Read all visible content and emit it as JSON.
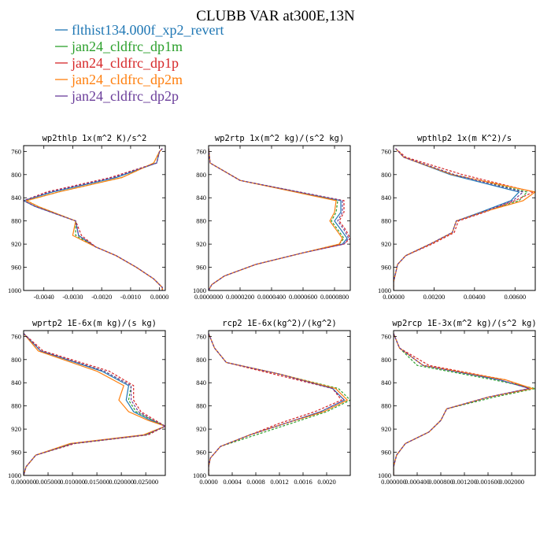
{
  "title": "CLUBB VAR at300E,13N",
  "legend": [
    {
      "label": "flthist134.000f_xp2_revert",
      "color": "#1f77b4",
      "dash": "solid"
    },
    {
      "label": "jan24_cldfrc_dp1m",
      "color": "#2ca02c",
      "dash": "dashed"
    },
    {
      "label": "jan24_cldfrc_dp1p",
      "color": "#d62728",
      "dash": "dashed"
    },
    {
      "label": "jan24_cldfrc_dp2m",
      "color": "#ff7f0e",
      "dash": "solid"
    },
    {
      "label": "jan24_cldfrc_dp2p",
      "color": "#6a3d9a",
      "dash": "dashed"
    }
  ],
  "chart_data": [
    {
      "type": "line",
      "title": "wp2thlp  1x(m^2 K)/s^2",
      "xlim": [
        -0.0047,
        0.0002
      ],
      "ylim": [
        1000,
        750
      ],
      "xticks": [
        -0.004,
        -0.003,
        -0.002,
        -0.001,
        0.0
      ],
      "xtick_labels": [
        "-0.0040",
        "-0.0030",
        "-0.0020",
        "-0.0010",
        "0.0000"
      ],
      "yticks": [
        760,
        800,
        840,
        880,
        920,
        960,
        1000
      ],
      "y": [
        755,
        760,
        780,
        805,
        830,
        845,
        855,
        880,
        905,
        925,
        940,
        960,
        980,
        995,
        1000
      ],
      "series": [
        {
          "name": "flthist134.000f_xp2_revert",
          "values": [
            0.0001,
            0.0,
            -0.0001,
            -0.0015,
            -0.0037,
            -0.0047,
            -0.0043,
            -0.0029,
            -0.0028,
            -0.0022,
            -0.0015,
            -0.0008,
            -0.0002,
            0.0001,
            0.0001
          ]
        },
        {
          "name": "jan24_cldfrc_dp1m",
          "values": [
            0.0001,
            0.0,
            -0.0002,
            -0.0013,
            -0.0035,
            -0.0046,
            -0.0042,
            -0.0029,
            -0.0029,
            -0.0022,
            -0.0015,
            -0.0008,
            -0.0002,
            0.0001,
            0.0001
          ]
        },
        {
          "name": "jan24_cldfrc_dp1p",
          "values": [
            0.0001,
            0.0,
            -0.0001,
            -0.0017,
            -0.0039,
            -0.0047,
            -0.0043,
            -0.0029,
            -0.0027,
            -0.0022,
            -0.0015,
            -0.0008,
            -0.0002,
            0.0001,
            0.0001
          ]
        },
        {
          "name": "jan24_cldfrc_dp2m",
          "values": [
            0.0001,
            0.0,
            -0.0002,
            -0.0013,
            -0.0035,
            -0.0046,
            -0.0042,
            -0.0029,
            -0.003,
            -0.0022,
            -0.0015,
            -0.0008,
            -0.0002,
            0.0001,
            0.0001
          ]
        },
        {
          "name": "jan24_cldfrc_dp2p",
          "values": [
            0.0001,
            0.0,
            -0.0001,
            -0.0016,
            -0.0038,
            -0.0047,
            -0.0043,
            -0.0029,
            -0.0028,
            -0.0022,
            -0.0015,
            -0.0008,
            -0.0002,
            0.0001,
            0.0001
          ]
        }
      ]
    },
    {
      "type": "line",
      "title": "wp2rtp  1x(m^2 kg)/(s^2 kg)",
      "xlim": [
        0.0,
        9e-05
      ],
      "ylim": [
        1000,
        750
      ],
      "xticks": [
        0.0,
        2e-05,
        4e-05,
        6e-05,
        8e-05
      ],
      "xtick_labels": [
        "0.0000000",
        "0.0000200",
        "0.0000400",
        "0.0000600",
        "0.0000800"
      ],
      "yticks": [
        760,
        800,
        840,
        880,
        920,
        960,
        1000
      ],
      "y": [
        755,
        780,
        810,
        845,
        865,
        880,
        895,
        910,
        920,
        935,
        955,
        975,
        990,
        1000
      ],
      "series": [
        {
          "name": "flthist134.000f_xp2_revert",
          "values": [
            0.0,
            1e-06,
            2e-05,
            8.4e-05,
            8.4e-05,
            8e-05,
            8.4e-05,
            8.8e-05,
            8.5e-05,
            6e-05,
            3e-05,
            1e-05,
            2e-06,
            0.0
          ]
        },
        {
          "name": "jan24_cldfrc_dp1m",
          "values": [
            0.0,
            1e-06,
            2e-05,
            8.2e-05,
            8.1e-05,
            7.8e-05,
            8.2e-05,
            8.6e-05,
            8.3e-05,
            6e-05,
            3e-05,
            1e-05,
            2e-06,
            0.0
          ]
        },
        {
          "name": "jan24_cldfrc_dp1p",
          "values": [
            0.0,
            1e-06,
            2e-05,
            8.6e-05,
            8.6e-05,
            8.3e-05,
            8.7e-05,
            9e-05,
            8.6e-05,
            6e-05,
            3e-05,
            1e-05,
            2e-06,
            0.0
          ]
        },
        {
          "name": "jan24_cldfrc_dp2m",
          "values": [
            0.0,
            1e-06,
            2e-05,
            8.1e-05,
            8e-05,
            7.7e-05,
            8.1e-05,
            8.5e-05,
            8.3e-05,
            6e-05,
            3e-05,
            1e-05,
            2e-06,
            0.0
          ]
        },
        {
          "name": "jan24_cldfrc_dp2p",
          "values": [
            0.0,
            1e-06,
            2e-05,
            8.5e-05,
            8.5e-05,
            8.2e-05,
            8.6e-05,
            8.9e-05,
            8.6e-05,
            6e-05,
            3e-05,
            1e-05,
            2e-06,
            0.0
          ]
        }
      ]
    },
    {
      "type": "line",
      "title": "wpthlp2  1x(m K^2)/s",
      "xlim": [
        0.0,
        0.007
      ],
      "ylim": [
        1000,
        750
      ],
      "xticks": [
        0.0,
        0.002,
        0.004,
        0.006
      ],
      "xtick_labels": [
        "0.00000",
        "0.00200",
        "0.00400",
        "0.00600"
      ],
      "yticks": [
        760,
        800,
        840,
        880,
        920,
        960,
        1000
      ],
      "y": [
        755,
        770,
        800,
        830,
        845,
        865,
        880,
        900,
        920,
        940,
        955,
        970,
        985,
        1000
      ],
      "series": [
        {
          "name": "flthist134.000f_xp2_revert",
          "values": [
            0.0001,
            0.0005,
            0.0028,
            0.0062,
            0.0058,
            0.0043,
            0.0031,
            0.0029,
            0.0018,
            0.0006,
            0.0002,
            0.0001,
            0.0,
            0.0
          ]
        },
        {
          "name": "jan24_cldfrc_dp1m",
          "values": [
            0.0001,
            0.0005,
            0.003,
            0.0066,
            0.0062,
            0.0044,
            0.0031,
            0.0029,
            0.0018,
            0.0006,
            0.0002,
            0.0001,
            0.0,
            0.0
          ]
        },
        {
          "name": "jan24_cldfrc_dp1p",
          "values": [
            0.0001,
            0.0006,
            0.0034,
            0.0069,
            0.006,
            0.0045,
            0.0032,
            0.003,
            0.0019,
            0.0006,
            0.0002,
            0.0001,
            0.0,
            0.0
          ]
        },
        {
          "name": "jan24_cldfrc_dp2m",
          "values": [
            0.0001,
            0.0005,
            0.0029,
            0.007,
            0.0064,
            0.0044,
            0.0031,
            0.0029,
            0.0018,
            0.0006,
            0.0002,
            0.0001,
            0.0,
            0.0
          ]
        },
        {
          "name": "jan24_cldfrc_dp2p",
          "values": [
            0.0001,
            0.0005,
            0.003,
            0.0064,
            0.0059,
            0.0044,
            0.0031,
            0.0029,
            0.0018,
            0.0006,
            0.0002,
            0.0001,
            0.0,
            0.0
          ]
        }
      ]
    },
    {
      "type": "line",
      "title": "wprtp2  1E-6x(m kg)/(s kg)",
      "xlim": [
        0.0,
        0.029
      ],
      "ylim": [
        1000,
        750
      ],
      "xticks": [
        0.0,
        0.005,
        0.01,
        0.015,
        0.02,
        0.025
      ],
      "xtick_labels": [
        "0.000000",
        "0.005000",
        "0.010000",
        "0.015000",
        "0.020000",
        "0.025000"
      ],
      "yticks": [
        760,
        800,
        840,
        880,
        920,
        960,
        1000
      ],
      "y": [
        755,
        785,
        820,
        845,
        870,
        890,
        905,
        915,
        930,
        945,
        965,
        985,
        1000
      ],
      "series": [
        {
          "name": "flthist134.000f_xp2_revert",
          "values": [
            0.0,
            0.0035,
            0.016,
            0.0215,
            0.021,
            0.0225,
            0.026,
            0.029,
            0.025,
            0.01,
            0.0025,
            0.0005,
            0.0
          ]
        },
        {
          "name": "jan24_cldfrc_dp1m",
          "values": [
            0.0,
            0.0035,
            0.0165,
            0.022,
            0.0215,
            0.023,
            0.0265,
            0.029,
            0.025,
            0.01,
            0.0025,
            0.0005,
            0.0
          ]
        },
        {
          "name": "jan24_cldfrc_dp1p",
          "values": [
            0.0,
            0.004,
            0.0175,
            0.0225,
            0.0225,
            0.024,
            0.027,
            0.029,
            0.0255,
            0.0105,
            0.0025,
            0.0005,
            0.0
          ]
        },
        {
          "name": "jan24_cldfrc_dp2m",
          "values": [
            0.0,
            0.003,
            0.015,
            0.0205,
            0.0195,
            0.0215,
            0.0255,
            0.029,
            0.0245,
            0.0095,
            0.0025,
            0.0005,
            0.0
          ]
        },
        {
          "name": "jan24_cldfrc_dp2p",
          "values": [
            0.0,
            0.0035,
            0.0165,
            0.022,
            0.022,
            0.0235,
            0.0265,
            0.029,
            0.025,
            0.01,
            0.0025,
            0.0005,
            0.0
          ]
        }
      ]
    },
    {
      "type": "line",
      "title": "rcp2  1E-6x(kg^2)/(kg^2)",
      "xlim": [
        0.0,
        0.0024
      ],
      "ylim": [
        1000,
        750
      ],
      "xticks": [
        0.0,
        0.0004,
        0.0008,
        0.0012,
        0.0016,
        0.002
      ],
      "xtick_labels": [
        "0.0000",
        "0.0004",
        "0.0008",
        "0.0012",
        "0.0016",
        "0.0020"
      ],
      "yticks": [
        760,
        800,
        840,
        880,
        920,
        960,
        1000
      ],
      "y": [
        755,
        780,
        805,
        825,
        850,
        870,
        890,
        910,
        930,
        950,
        970,
        985,
        1000
      ],
      "series": [
        {
          "name": "flthist134.000f_xp2_revert",
          "values": [
            0.0,
            0.0001,
            0.0003,
            0.0012,
            0.0021,
            0.0023,
            0.0019,
            0.0013,
            0.0007,
            0.0002,
            3e-05,
            0.0,
            0.0
          ]
        },
        {
          "name": "jan24_cldfrc_dp1m",
          "values": [
            0.0,
            0.0001,
            0.0003,
            0.0012,
            0.0022,
            0.0024,
            0.002,
            0.0014,
            0.0008,
            0.0002,
            3e-05,
            0.0,
            0.0
          ]
        },
        {
          "name": "jan24_cldfrc_dp1p",
          "values": [
            0.0,
            0.0001,
            0.0003,
            0.0011,
            0.0021,
            0.00225,
            0.0018,
            0.0012,
            0.0007,
            0.0002,
            3e-05,
            0.0,
            0.0
          ]
        },
        {
          "name": "jan24_cldfrc_dp2m",
          "values": [
            0.0,
            0.0001,
            0.0003,
            0.0012,
            0.00215,
            0.00235,
            0.00195,
            0.0013,
            0.0007,
            0.0002,
            3e-05,
            0.0,
            0.0
          ]
        },
        {
          "name": "jan24_cldfrc_dp2p",
          "values": [
            0.0,
            0.0001,
            0.0003,
            0.0012,
            0.0021,
            0.0023,
            0.0019,
            0.0013,
            0.0007,
            0.0002,
            3e-05,
            0.0,
            0.0
          ]
        }
      ]
    },
    {
      "type": "line",
      "title": "wp2rcp  1E-3x(m^2 kg)/(s^2 kg)",
      "xlim": [
        0.0,
        0.0024
      ],
      "ylim": [
        1000,
        750
      ],
      "xticks": [
        0.0,
        0.0004,
        0.0008,
        0.0012,
        0.0016,
        0.002
      ],
      "xtick_labels": [
        "0.000000",
        "0.000400",
        "0.000800",
        "0.001200",
        "0.001600",
        "0.002000"
      ],
      "yticks": [
        760,
        800,
        840,
        880,
        920,
        960,
        1000
      ],
      "y": [
        755,
        780,
        810,
        835,
        850,
        865,
        885,
        905,
        925,
        945,
        965,
        985,
        1000
      ],
      "series": [
        {
          "name": "flthist134.000f_xp2_revert",
          "values": [
            0.0,
            0.0001,
            0.0005,
            0.0018,
            0.0023,
            0.0016,
            0.0009,
            0.0008,
            0.0006,
            0.0002,
            5e-05,
            0.0,
            0.0
          ]
        },
        {
          "name": "jan24_cldfrc_dp1m",
          "values": [
            0.0,
            0.0001,
            0.0004,
            0.0017,
            0.0024,
            0.0017,
            0.0009,
            0.0008,
            0.0006,
            0.0002,
            5e-05,
            0.0,
            0.0
          ]
        },
        {
          "name": "jan24_cldfrc_dp1p",
          "values": [
            0.0,
            0.0001,
            0.0006,
            0.0019,
            0.0023,
            0.0016,
            0.0009,
            0.0008,
            0.0006,
            0.0002,
            5e-05,
            0.0,
            0.0
          ]
        },
        {
          "name": "jan24_cldfrc_dp2m",
          "values": [
            0.0,
            0.0001,
            0.0005,
            0.0019,
            0.00235,
            0.0016,
            0.0009,
            0.0008,
            0.0006,
            0.0002,
            5e-05,
            0.0,
            0.0
          ]
        },
        {
          "name": "jan24_cldfrc_dp2p",
          "values": [
            0.0,
            0.0001,
            0.0005,
            0.0018,
            0.0023,
            0.0016,
            0.0009,
            0.0008,
            0.0006,
            0.0002,
            5e-05,
            0.0,
            0.0
          ]
        }
      ]
    }
  ]
}
